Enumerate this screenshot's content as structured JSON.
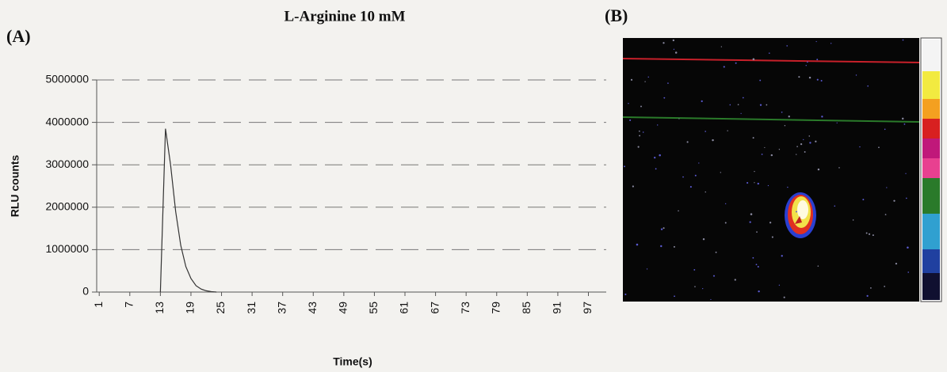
{
  "chart_data": {
    "type": "line",
    "title": "L-Arginine 10 mM",
    "panel_labels": [
      "(A)",
      "(B)"
    ],
    "x_label": "Time(s)",
    "y_label": "RLU counts",
    "x": [
      13,
      14,
      15,
      16,
      17,
      18,
      19,
      20,
      21,
      22,
      23,
      24
    ],
    "values": [
      0,
      3850000,
      3000000,
      1900000,
      1100000,
      600000,
      320000,
      150000,
      70000,
      30000,
      10000,
      0
    ],
    "color": "#333333",
    "xlim": [
      0.5,
      100.5
    ],
    "xticks": [
      1,
      7,
      13,
      19,
      25,
      31,
      37,
      43,
      49,
      55,
      61,
      67,
      73,
      79,
      85,
      91,
      97
    ],
    "ylim": [
      0,
      5000000
    ],
    "yticks": [
      0,
      1000000,
      2000000,
      3000000,
      4000000,
      5000000
    ],
    "grid": true
  }
}
